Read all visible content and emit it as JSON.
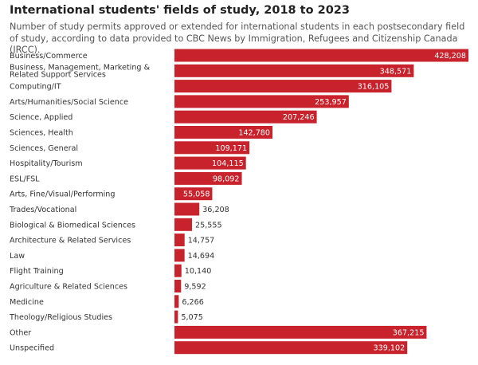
{
  "chart_data": {
    "type": "bar",
    "orientation": "horizontal",
    "title": "International students' fields of study, 2018 to 2023",
    "subtitle": "Number of study permits approved or extended for international students in each postsecondary field of study, according to data provided to CBC News by Immigration, Refugees and Citizenship Canada (IRCC).",
    "categories": [
      "Business/Commerce",
      "Business, Management, Marketing & Related Support Services",
      "Computing/IT",
      "Arts/Humanities/Social Science",
      "Science, Applied",
      "Sciences, Health",
      "Sciences, General",
      "Hospitality/Tourism",
      "ESL/FSL",
      "Arts, Fine/Visual/Performing",
      "Trades/Vocational",
      "Biological & Biomedical Sciences",
      "Architecture & Related Services",
      "Law",
      "Flight Training",
      "Agriculture & Related Sciences",
      "Medicine",
      "Theology/Religious Studies",
      "Other",
      "Unspecified"
    ],
    "values": [
      428208,
      348571,
      316105,
      253957,
      207246,
      142780,
      109171,
      104115,
      98092,
      55058,
      36208,
      25555,
      14757,
      14694,
      10140,
      9592,
      6266,
      5075,
      367215,
      339102
    ],
    "value_labels": [
      "428,208",
      "348,571",
      "316,105",
      "253,957",
      "207,246",
      "142,780",
      "109,171",
      "104,115",
      "98,092",
      "55,058",
      "36,208",
      "25,555",
      "14,757",
      "14,694",
      "10,140",
      "9,592",
      "6,266",
      "5,075",
      "367,215",
      "339,102"
    ],
    "xlim": [
      0,
      428208
    ],
    "bar_color": "#c8232c",
    "xlabel": "",
    "ylabel": ""
  }
}
